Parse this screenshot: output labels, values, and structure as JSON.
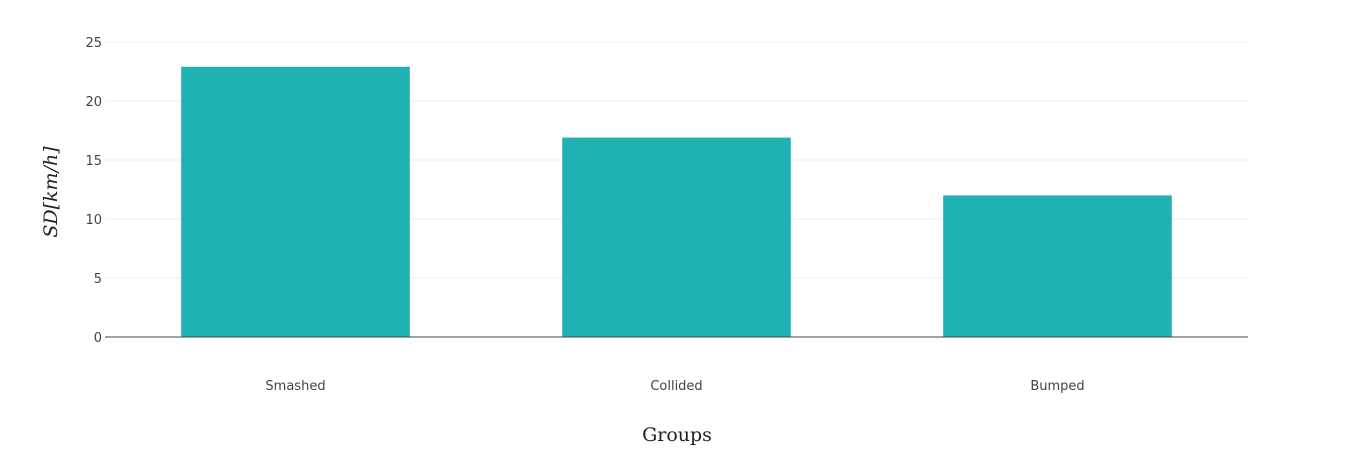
{
  "chart_data": {
    "type": "bar",
    "categories": [
      "Smashed",
      "Collided",
      "Bumped"
    ],
    "values": [
      22.9,
      16.9,
      12.0
    ],
    "xlabel": "Groups",
    "ylabel": "SD[km/h]",
    "ylim": [
      0,
      25
    ],
    "yticks": [
      0,
      5,
      10,
      15,
      20,
      25
    ],
    "grid": true,
    "bar_color": "#20b2b2"
  }
}
